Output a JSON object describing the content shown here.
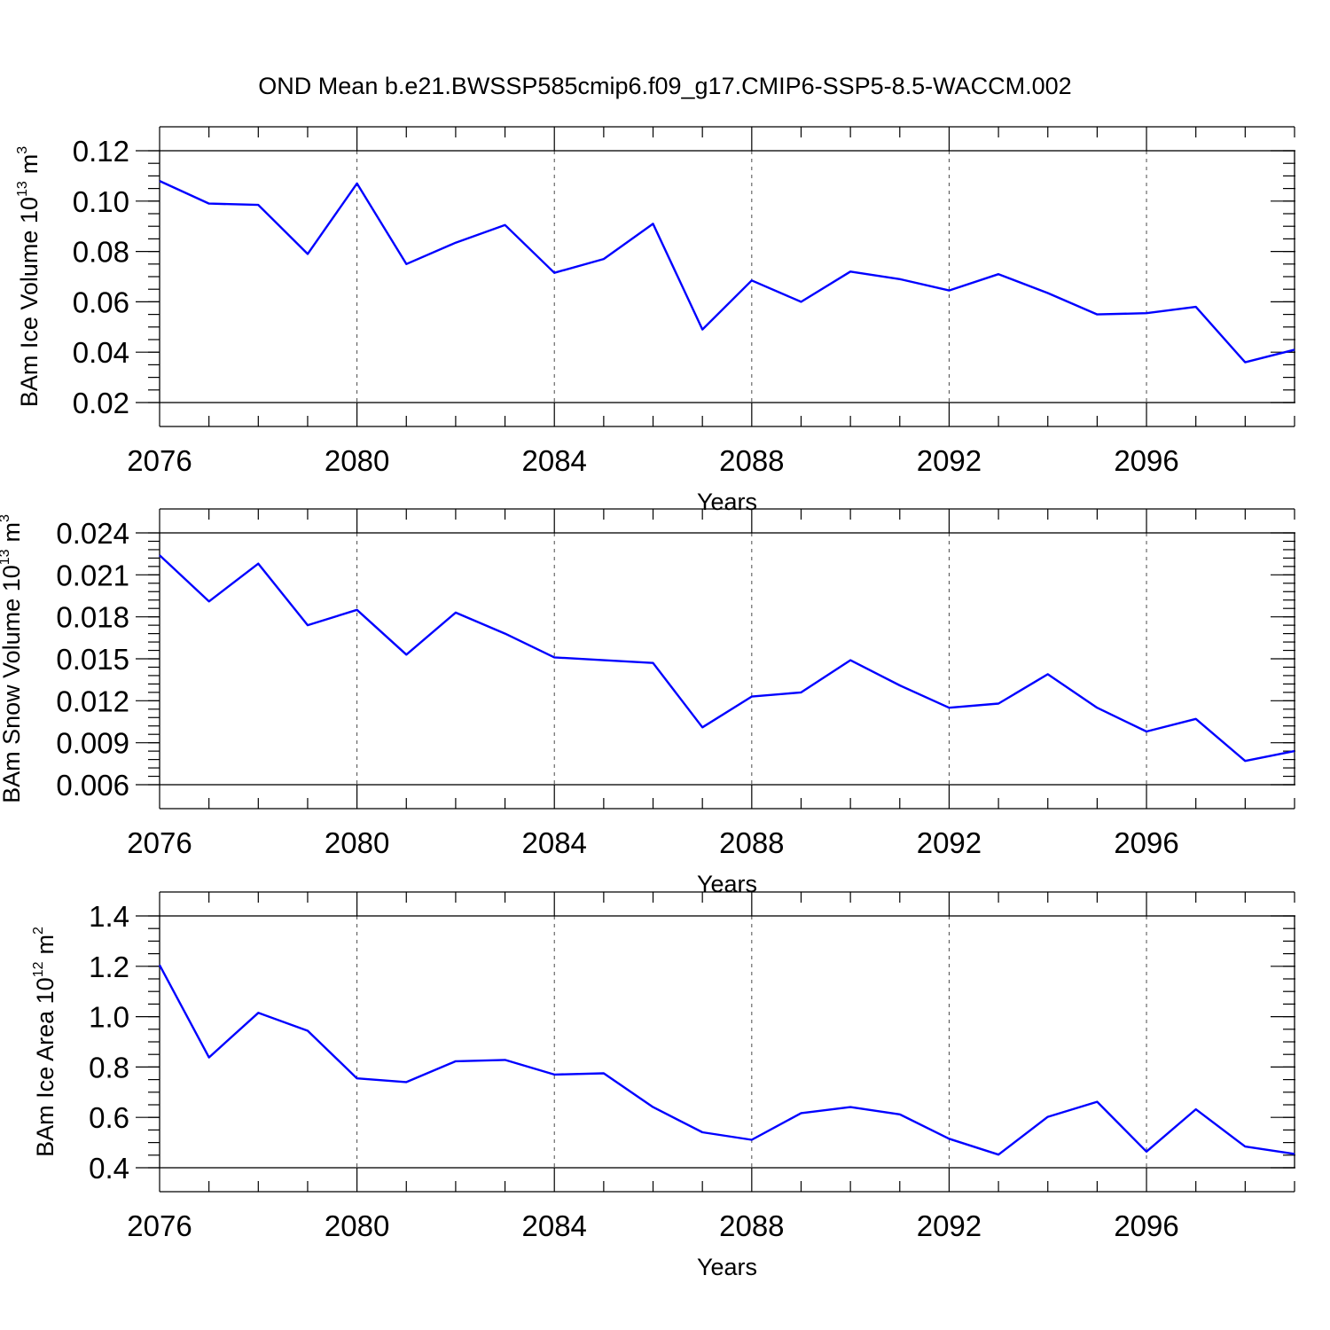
{
  "chart_data": {
    "title": "OND Mean b.e21.BWSSP585cmip6.f09_g17.CMIP6-SSP5-8.5-WACCM.002",
    "line_color": "#0000ff",
    "panels": [
      {
        "type": "line",
        "ylabel": "BAm Ice Volume 10",
        "ylabel_exponent": "13",
        "ylabel_unit": "m",
        "ylabel_unit_exponent": "3",
        "xlabel": "Years",
        "xlim": [
          2076,
          2099
        ],
        "ylim": [
          0.02,
          0.12
        ],
        "y_ticks": [
          "0.02",
          "0.04",
          "0.06",
          "0.08",
          "0.10",
          "0.12"
        ],
        "y_minor_step": 0.005,
        "x_ticks": [
          "2076",
          "2080",
          "2084",
          "2088",
          "2092",
          "2096"
        ],
        "x_gridlines": true,
        "x": [
          2076,
          2077,
          2078,
          2079,
          2080,
          2081,
          2082,
          2083,
          2084,
          2085,
          2086,
          2087,
          2088,
          2089,
          2090,
          2091,
          2092,
          2093,
          2094,
          2095,
          2096,
          2097,
          2098,
          2099
        ],
        "values": [
          0.108,
          0.099,
          0.0985,
          0.079,
          0.107,
          0.075,
          0.0835,
          0.0905,
          0.0715,
          0.077,
          0.091,
          0.049,
          0.0685,
          0.06,
          0.072,
          0.069,
          0.0645,
          0.071,
          0.0635,
          0.055,
          0.0555,
          0.058,
          0.036,
          0.041
        ]
      },
      {
        "type": "line",
        "ylabel": "BAm Snow Volume 10",
        "ylabel_exponent": "13",
        "ylabel_unit": "m",
        "ylabel_unit_exponent": "3",
        "xlabel": "Years",
        "xlim": [
          2076,
          2099
        ],
        "ylim": [
          0.006,
          0.024
        ],
        "y_ticks": [
          "0.006",
          "0.009",
          "0.012",
          "0.015",
          "0.018",
          "0.021",
          "0.024"
        ],
        "y_minor_step": 0.0006,
        "x_ticks": [
          "2076",
          "2080",
          "2084",
          "2088",
          "2092",
          "2096"
        ],
        "x_gridlines": true,
        "x": [
          2076,
          2077,
          2078,
          2079,
          2080,
          2081,
          2082,
          2083,
          2084,
          2085,
          2086,
          2087,
          2088,
          2089,
          2090,
          2091,
          2092,
          2093,
          2094,
          2095,
          2096,
          2097,
          2098,
          2099
        ],
        "values": [
          0.0224,
          0.0191,
          0.0218,
          0.0174,
          0.0185,
          0.0153,
          0.0183,
          0.0168,
          0.0151,
          0.0149,
          0.0147,
          0.0101,
          0.0123,
          0.0126,
          0.0149,
          0.0131,
          0.0115,
          0.0118,
          0.0139,
          0.0115,
          0.0098,
          0.0107,
          0.0077,
          0.0084
        ]
      },
      {
        "type": "line",
        "ylabel": "BAm Ice Area 10",
        "ylabel_exponent": "12",
        "ylabel_unit": "m",
        "ylabel_unit_exponent": "2",
        "xlabel": "Years",
        "xlim": [
          2076,
          2099
        ],
        "ylim": [
          0.4,
          1.4
        ],
        "y_ticks": [
          "0.4",
          "0.6",
          "0.8",
          "1.0",
          "1.2",
          "1.4"
        ],
        "y_minor_step": 0.05,
        "x_ticks": [
          "2076",
          "2080",
          "2084",
          "2088",
          "2092",
          "2096"
        ],
        "x_gridlines": true,
        "x": [
          2076,
          2077,
          2078,
          2079,
          2080,
          2081,
          2082,
          2083,
          2084,
          2085,
          2086,
          2087,
          2088,
          2089,
          2090,
          2091,
          2092,
          2093,
          2094,
          2095,
          2096,
          2097,
          2098,
          2099
        ],
        "values": [
          1.205,
          0.838,
          1.015,
          0.944,
          0.755,
          0.74,
          0.823,
          0.828,
          0.77,
          0.775,
          0.641,
          0.541,
          0.511,
          0.617,
          0.641,
          0.612,
          0.515,
          0.452,
          0.602,
          0.662,
          0.464,
          0.632,
          0.484,
          0.455
        ]
      }
    ]
  }
}
